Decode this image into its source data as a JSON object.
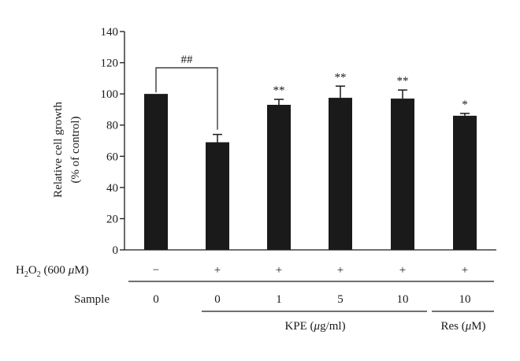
{
  "chart_data": {
    "type": "bar",
    "ylabel_line1": "Relative cell growth",
    "ylabel_line2": "(% of control)",
    "ylim": [
      0,
      140
    ],
    "yticks": [
      "0",
      "20",
      "40",
      "60",
      "80",
      "100",
      "120",
      "140"
    ],
    "values": [
      100,
      69,
      93,
      97.5,
      97,
      86
    ],
    "errors": [
      0,
      5,
      3.5,
      7.5,
      5.5,
      1.5
    ],
    "significance": [
      "",
      "",
      "**",
      "**",
      "**",
      "*"
    ],
    "bracket_label": "##",
    "bar_color": "#1a1a1a",
    "rows": [
      {
        "label_main": "H",
        "label_sub": "2",
        "label_mid": "O",
        "label_sub2": "2",
        "label_tail": " (600 ",
        "label_mu": "μ",
        "label_end": "M)",
        "values": [
          "−",
          "+",
          "+",
          "+",
          "+",
          "+"
        ]
      },
      {
        "label": "Sample",
        "values": [
          "0",
          "0",
          "1",
          "5",
          "10",
          "10"
        ]
      }
    ],
    "groups": [
      {
        "label_pre": "KPE (",
        "label_mu": "μ",
        "label_post": "g/ml)"
      },
      {
        "label_pre": "Res (",
        "label_mu": "μ",
        "label_post": "M)"
      }
    ]
  }
}
